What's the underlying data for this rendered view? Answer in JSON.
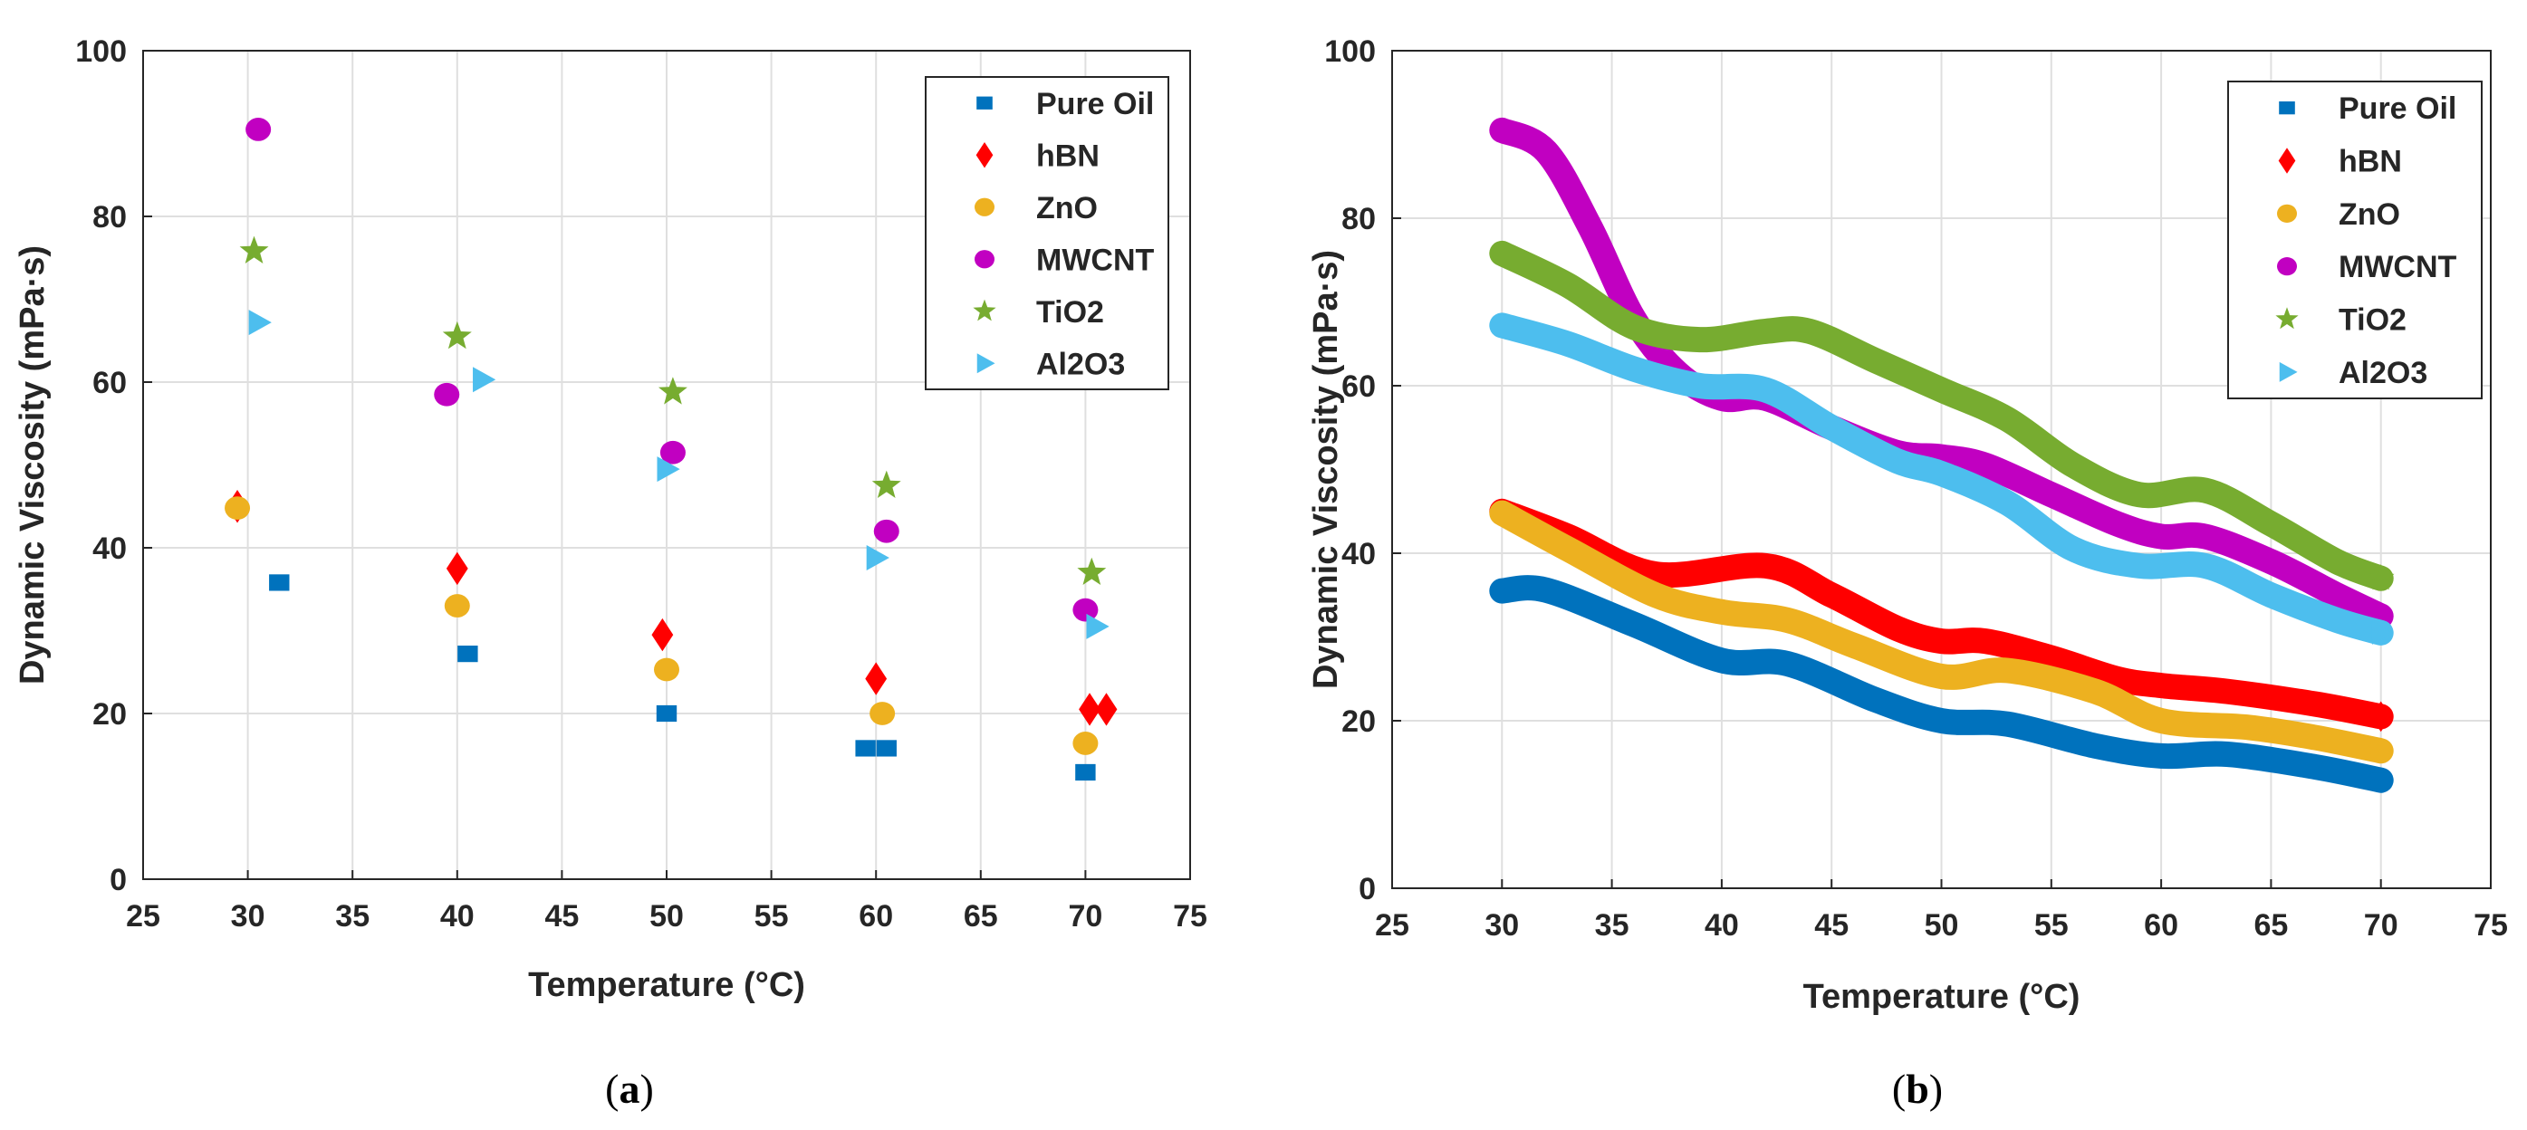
{
  "chart_data": [
    {
      "type": "scatter",
      "panel_label": "a",
      "xlabel": "Temperature (°C)",
      "ylabel": "Dynamic Viscosity (mPa·s)",
      "xlim": [
        25,
        75
      ],
      "ylim": [
        0,
        100
      ],
      "xticks": [
        25,
        30,
        35,
        40,
        45,
        50,
        55,
        60,
        65,
        70,
        75
      ],
      "yticks": [
        0,
        20,
        40,
        60,
        80,
        100
      ],
      "grid": true,
      "legend": "top-right",
      "series": [
        {
          "name": "Pure Oil",
          "marker": "square",
          "color": "#0072BD",
          "x": [
            31.5,
            40.5,
            50,
            59.5,
            60.5,
            70
          ],
          "y": [
            35.8,
            27.2,
            20,
            15.8,
            15.8,
            12.9
          ]
        },
        {
          "name": "hBN",
          "marker": "diamond",
          "color": "#FF0000",
          "x": [
            29.5,
            40,
            49.8,
            60,
            70.2,
            71
          ],
          "y": [
            45,
            37.5,
            29.5,
            24.2,
            20.5,
            20.5
          ]
        },
        {
          "name": "ZnO",
          "marker": "circle",
          "color": "#EDB120",
          "x": [
            29.5,
            40,
            50,
            60.3,
            70
          ],
          "y": [
            44.8,
            33,
            25.3,
            20,
            16.4
          ]
        },
        {
          "name": "MWCNT",
          "marker": "circle",
          "color": "#C100C1",
          "x": [
            30.5,
            39.5,
            50.3,
            60.5,
            70
          ],
          "y": [
            90.5,
            58.5,
            51.5,
            42,
            32.5
          ]
        },
        {
          "name": "TiO2",
          "marker": "star",
          "color": "#77AC30",
          "x": [
            30.3,
            40,
            50.3,
            60.5,
            70.3
          ],
          "y": [
            75.8,
            65.5,
            58.8,
            47.5,
            37
          ]
        },
        {
          "name": "Al2O3",
          "marker": "triangle-right",
          "color": "#4DBEEE",
          "x": [
            30.5,
            41.2,
            50,
            60,
            70.5
          ],
          "y": [
            67.2,
            60.3,
            49.5,
            38.8,
            30.5
          ]
        }
      ]
    },
    {
      "type": "line",
      "panel_label": "b",
      "xlabel": "Temperature (°C)",
      "ylabel": "Dynamic Viscosity (mPa·s)",
      "xlim": [
        25,
        75
      ],
      "ylim": [
        0,
        100
      ],
      "xticks": [
        25,
        30,
        35,
        40,
        45,
        50,
        55,
        60,
        65,
        70,
        75
      ],
      "yticks": [
        0,
        20,
        40,
        60,
        80,
        100
      ],
      "grid": true,
      "legend": "top-right",
      "series": [
        {
          "name": "Pure Oil",
          "marker": "square",
          "color": "#0072BD",
          "x": [
            30,
            32,
            36,
            40,
            43,
            47,
            50,
            53,
            57,
            60,
            63,
            67,
            70
          ],
          "y": [
            35.5,
            35.6,
            31.5,
            27.2,
            26.8,
            22.5,
            20,
            19.6,
            17,
            15.8,
            16,
            14.5,
            12.9
          ]
        },
        {
          "name": "hBN",
          "marker": "diamond",
          "color": "#FF0000",
          "x": [
            30,
            33,
            37,
            42,
            45,
            48,
            50,
            52,
            55,
            58,
            60,
            63,
            67,
            70
          ],
          "y": [
            45,
            42,
            37.5,
            38.5,
            35,
            31,
            29.5,
            29.5,
            27.5,
            25,
            24.2,
            23.5,
            22,
            20.5
          ]
        },
        {
          "name": "ZnO",
          "marker": "circle",
          "color": "#EDB120",
          "x": [
            30,
            33,
            37,
            40,
            43,
            46,
            50,
            53,
            57,
            60,
            64,
            67,
            70
          ],
          "y": [
            44.8,
            40.5,
            35,
            33,
            32,
            29,
            25.3,
            26,
            23.5,
            20,
            19.2,
            18,
            16.4
          ]
        },
        {
          "name": "MWCNT",
          "marker": "circle",
          "color": "#C100C1",
          "x": [
            30,
            32,
            34,
            36,
            38,
            40,
            42,
            45,
            48,
            50,
            52,
            55,
            58,
            60,
            62,
            65,
            68,
            70
          ],
          "y": [
            90.5,
            88,
            79,
            68,
            61.5,
            58.5,
            58.5,
            55,
            52,
            51.5,
            50.5,
            47,
            43.5,
            42,
            42,
            39,
            35,
            32.5
          ]
        },
        {
          "name": "TiO2",
          "marker": "star",
          "color": "#77AC30",
          "x": [
            30,
            33,
            36,
            39,
            42,
            44,
            47,
            50,
            53,
            56,
            59,
            62,
            65,
            68,
            70
          ],
          "y": [
            75.8,
            72,
            67,
            65.5,
            66.5,
            66.5,
            63,
            59.5,
            56,
            50.5,
            47,
            47.5,
            43.5,
            39,
            37
          ]
        },
        {
          "name": "Al2O3",
          "marker": "triangle-right",
          "color": "#4DBEEE",
          "x": [
            30,
            33,
            36,
            39,
            42,
            45,
            48,
            50,
            53,
            56,
            59,
            62,
            65,
            68,
            70
          ],
          "y": [
            67.2,
            65,
            62,
            60,
            59.5,
            55,
            51,
            49.5,
            46,
            40.5,
            38.5,
            38.5,
            35,
            32,
            30.5
          ]
        }
      ]
    }
  ]
}
